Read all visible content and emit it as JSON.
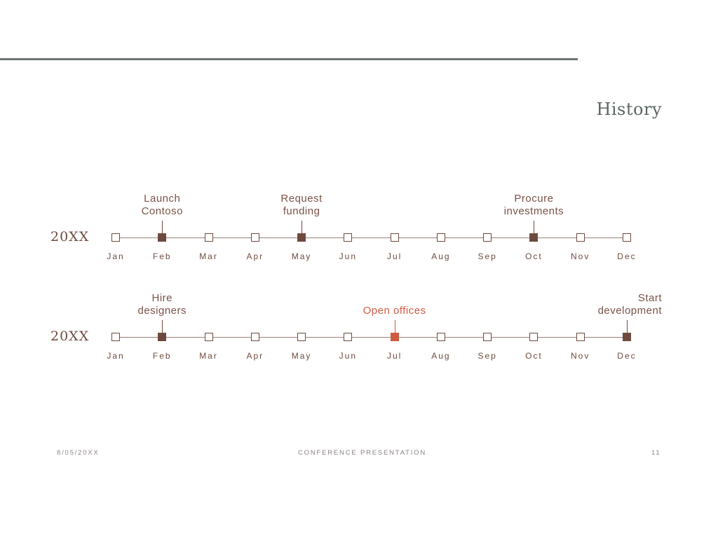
{
  "title": "History",
  "footer": {
    "date": "8/05/20XX",
    "center": "CONFERENCE PRESENTATION",
    "page": "11"
  },
  "timelines": [
    {
      "year": "20XX",
      "months": [
        "Jan",
        "Feb",
        "Mar",
        "Apr",
        "May",
        "Jun",
        "Jul",
        "Aug",
        "Sep",
        "Oct",
        "Nov",
        "Dec"
      ],
      "events": [
        {
          "month": "Feb",
          "label": "Launch\nContoso"
        },
        {
          "month": "May",
          "label": "Request\nfunding"
        },
        {
          "month": "Oct",
          "label": "Procure\ninvestments"
        }
      ]
    },
    {
      "year": "20XX",
      "months": [
        "Jan",
        "Feb",
        "Mar",
        "Apr",
        "May",
        "Jun",
        "Jul",
        "Aug",
        "Sep",
        "Oct",
        "Nov",
        "Dec"
      ],
      "events": [
        {
          "month": "Feb",
          "label": "Hire\ndesigners"
        },
        {
          "month": "Jul",
          "label": "Open offices",
          "highlight": true
        },
        {
          "month": "Dec",
          "label": "Start\ndevelopment"
        }
      ]
    }
  ],
  "colors": {
    "accent": "#6e4a3e",
    "highlight": "#cf5a42",
    "rule": "#6b7370",
    "title": "#5b6663"
  }
}
